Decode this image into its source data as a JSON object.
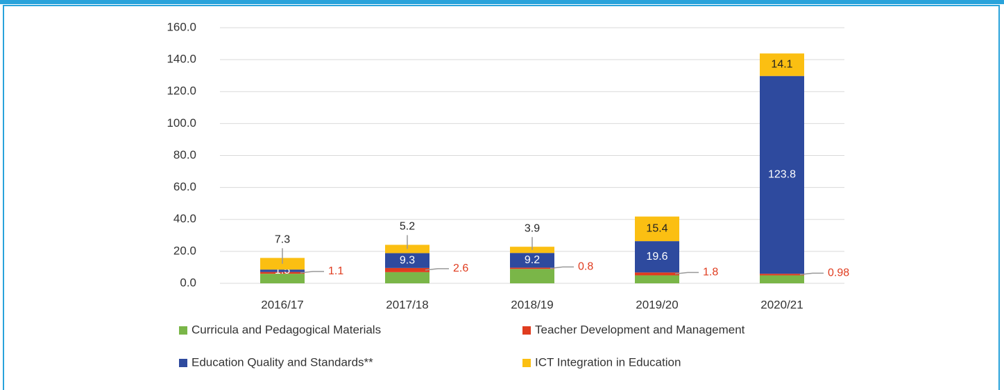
{
  "chart_data": {
    "type": "stacked_bar",
    "categories": [
      "2016/17",
      "2017/18",
      "2018/19",
      "2019/20",
      "2020/21"
    ],
    "series": [
      {
        "name": "Curricula and Pedagogical Materials",
        "color": "#7ab648",
        "values": [
          6.0,
          7.0,
          9.0,
          5.0,
          5.0
        ]
      },
      {
        "name": "Teacher Development and Management",
        "color": "#e03c1f",
        "values": [
          1.1,
          2.6,
          0.8,
          1.8,
          0.98
        ]
      },
      {
        "name": "Education Quality and Standards**",
        "color": "#2e4a9e",
        "values": [
          1.5,
          9.3,
          9.2,
          19.6,
          123.8
        ]
      },
      {
        "name": "ICT Integration in Education",
        "color": "#fbbf12",
        "values": [
          7.3,
          5.2,
          3.9,
          15.4,
          14.1
        ]
      }
    ],
    "ylim": [
      0,
      160
    ],
    "yticks": [
      {
        "value": 0,
        "label": "0.0"
      },
      {
        "value": 20,
        "label": "20.0"
      },
      {
        "value": 40,
        "label": "40.0"
      },
      {
        "value": 60,
        "label": "60.0"
      },
      {
        "value": 80,
        "label": "80.0"
      },
      {
        "value": 100,
        "label": "100.0"
      },
      {
        "value": 120,
        "label": "120.0"
      },
      {
        "value": 140,
        "label": "140.0"
      },
      {
        "value": 160,
        "label": "160.0"
      }
    ],
    "grid": true
  }
}
